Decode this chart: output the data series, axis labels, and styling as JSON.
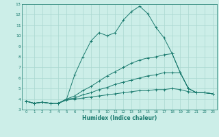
{
  "xlabel": "Humidex (Indice chaleur)",
  "ylabel": "",
  "xlim": [
    -0.5,
    23.5
  ],
  "ylim": [
    3,
    13
  ],
  "yticks": [
    3,
    4,
    5,
    6,
    7,
    8,
    9,
    10,
    11,
    12,
    13
  ],
  "xticks": [
    0,
    1,
    2,
    3,
    4,
    5,
    6,
    7,
    8,
    9,
    10,
    11,
    12,
    13,
    14,
    15,
    16,
    17,
    18,
    19,
    20,
    21,
    22,
    23
  ],
  "bg_color": "#cceee8",
  "line_color": "#1a7a6e",
  "grid_color": "#aad8d0",
  "lines": [
    {
      "x": [
        0,
        1,
        2,
        3,
        4,
        5,
        6,
        7,
        8,
        9,
        10,
        11,
        12,
        13,
        14,
        15,
        16,
        17,
        18,
        19,
        20,
        21,
        22,
        23
      ],
      "y": [
        3.8,
        3.6,
        3.7,
        3.6,
        3.6,
        4.0,
        6.3,
        8.0,
        9.5,
        10.3,
        10.0,
        10.3,
        11.5,
        12.3,
        12.8,
        12.1,
        10.8,
        9.8,
        8.3,
        6.5,
        5.0,
        4.6,
        4.6,
        4.5
      ]
    },
    {
      "x": [
        0,
        1,
        2,
        3,
        4,
        5,
        6,
        7,
        8,
        9,
        10,
        11,
        12,
        13,
        14,
        15,
        16,
        17,
        18,
        19,
        20,
        21,
        22,
        23
      ],
      "y": [
        3.8,
        3.6,
        3.7,
        3.6,
        3.6,
        4.0,
        4.3,
        4.8,
        5.2,
        5.7,
        6.2,
        6.6,
        7.0,
        7.4,
        7.7,
        7.9,
        8.0,
        8.2,
        8.3,
        6.5,
        5.0,
        4.6,
        4.6,
        4.5
      ]
    },
    {
      "x": [
        0,
        1,
        2,
        3,
        4,
        5,
        6,
        7,
        8,
        9,
        10,
        11,
        12,
        13,
        14,
        15,
        16,
        17,
        18,
        19,
        20,
        21,
        22,
        23
      ],
      "y": [
        3.8,
        3.6,
        3.7,
        3.6,
        3.6,
        4.0,
        4.1,
        4.4,
        4.6,
        4.9,
        5.1,
        5.4,
        5.6,
        5.8,
        6.0,
        6.2,
        6.3,
        6.5,
        6.5,
        6.5,
        5.0,
        4.6,
        4.6,
        4.5
      ]
    },
    {
      "x": [
        0,
        1,
        2,
        3,
        4,
        5,
        6,
        7,
        8,
        9,
        10,
        11,
        12,
        13,
        14,
        15,
        16,
        17,
        18,
        19,
        20,
        21,
        22,
        23
      ],
      "y": [
        3.8,
        3.6,
        3.7,
        3.6,
        3.6,
        3.9,
        4.0,
        4.1,
        4.2,
        4.3,
        4.4,
        4.5,
        4.6,
        4.7,
        4.8,
        4.8,
        4.9,
        4.9,
        5.0,
        4.9,
        4.7,
        4.6,
        4.6,
        4.5
      ]
    }
  ]
}
